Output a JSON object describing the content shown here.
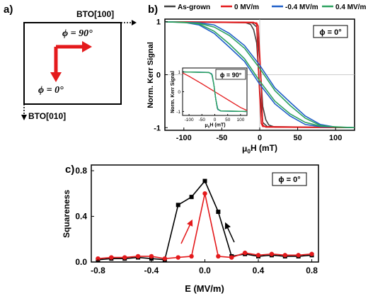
{
  "panel_a": {
    "label": "a)",
    "x_axis_label": "BTO[100]",
    "y_axis_label": "BTO[010]",
    "phi_90_label": "ϕ = 90°",
    "phi_0_label": "ϕ = 0°"
  },
  "panel_b": {
    "label": "b)",
    "phi_box": "ϕ = 0°",
    "inset_phi_box": "ϕ = 90°",
    "colors": {
      "as_grown": "#404040",
      "e0": "#e41a1c",
      "em04": "#1f5fc8",
      "ep04": "#2ca25f"
    }
  },
  "panel_c": {
    "label": "c)",
    "phi_box": "ϕ = 0°",
    "colors": {
      "black": "#000000",
      "red": "#e41a1c"
    }
  },
  "chart_data": [
    {
      "type": "line",
      "panel": "b",
      "xlabel": "μ0H (mT)",
      "ylabel": "Norm. Kerr Signal",
      "xlim": [
        -125,
        125
      ],
      "ylim": [
        -1.05,
        1.05
      ],
      "xticks": [
        -100,
        -50,
        0,
        50,
        100
      ],
      "yticks": [
        -1,
        0,
        1
      ],
      "legend_position": "top",
      "series": [
        {
          "name": "As-grown",
          "color": "#404040",
          "x": [
            -125,
            -10,
            -4,
            0,
            4,
            8,
            12,
            20,
            125
          ],
          "y": [
            1,
            0.98,
            0.9,
            0.3,
            -0.6,
            -0.85,
            -0.95,
            -0.99,
            -1
          ]
        },
        {
          "name": "0 MV/m",
          "color": "#e41a1c",
          "x": [
            -125,
            -8,
            -4,
            -2,
            0,
            2,
            4,
            125
          ],
          "y": [
            1,
            0.99,
            0.95,
            0.2,
            -0.4,
            -0.92,
            -0.98,
            -1
          ]
        },
        {
          "name": "-0.4 MV/m",
          "color": "#1f5fc8",
          "x": [
            -125,
            -80,
            -60,
            -40,
            -20,
            0,
            20,
            40,
            60,
            80,
            100,
            125
          ],
          "y": [
            1,
            0.98,
            0.94,
            0.78,
            0.55,
            0.18,
            -0.25,
            -0.52,
            -0.78,
            -0.94,
            -0.99,
            -1
          ]
        },
        {
          "name": "0.4 MV/m",
          "color": "#2ca25f",
          "x": [
            -125,
            -80,
            -60,
            -40,
            -20,
            0,
            20,
            40,
            60,
            80,
            100,
            125
          ],
          "y": [
            1,
            0.97,
            0.9,
            0.74,
            0.5,
            0.12,
            -0.3,
            -0.58,
            -0.82,
            -0.96,
            -0.99,
            -1
          ]
        }
      ]
    },
    {
      "type": "line",
      "panel": "b-inset",
      "xlabel": "μ0H (mT)",
      "ylabel": "Norm. Kerr Signal",
      "xlim": [
        -125,
        125
      ],
      "ylim": [
        -1.2,
        1.2
      ],
      "xticks": [
        -100,
        -50,
        0,
        50,
        100
      ],
      "yticks": [
        -1,
        0,
        1
      ],
      "series": [
        {
          "name": "0 MV/m",
          "color": "#e41a1c",
          "x": [
            -125,
            -100,
            -50,
            0,
            50,
            100,
            125
          ],
          "y": [
            0.95,
            0.78,
            0.4,
            0.0,
            -0.4,
            -0.8,
            -0.95
          ]
        },
        {
          "name": "-0.4 MV/m",
          "color": "#1f5fc8",
          "x": [
            -125,
            -25,
            -12,
            -4,
            0,
            4,
            12,
            25,
            125
          ],
          "y": [
            1,
            0.98,
            0.9,
            0.4,
            0,
            -0.4,
            -0.9,
            -0.98,
            -1
          ]
        },
        {
          "name": "0.4 MV/m",
          "color": "#2ca25f",
          "x": [
            -125,
            -22,
            -10,
            -3,
            0,
            3,
            10,
            22,
            125
          ],
          "y": [
            1,
            0.97,
            0.85,
            0.3,
            0,
            -0.3,
            -0.85,
            -0.97,
            -1
          ]
        }
      ]
    },
    {
      "type": "line",
      "panel": "c",
      "xlabel": "E (MV/m)",
      "ylabel": "Squareness",
      "xlim": [
        -0.85,
        0.85
      ],
      "ylim": [
        0,
        0.85
      ],
      "xticks": [
        -0.8,
        -0.4,
        0.0,
        0.4,
        0.8
      ],
      "xtick_labels": [
        "-0.8",
        "-0.4",
        "0.0",
        "0.4",
        "0.8"
      ],
      "yticks": [
        0.0,
        0.4,
        0.8
      ],
      "ytick_labels": [
        "0.0",
        "0.4",
        "0.8"
      ],
      "series": [
        {
          "color": "#000000",
          "marker": "square",
          "x": [
            -0.8,
            -0.7,
            -0.6,
            -0.5,
            -0.4,
            -0.3,
            -0.2,
            -0.1,
            0.0,
            0.1,
            0.2,
            0.3,
            0.4,
            0.5,
            0.6,
            0.7,
            0.8
          ],
          "y": [
            0.02,
            0.03,
            0.03,
            0.04,
            0.03,
            0.02,
            0.5,
            0.57,
            0.71,
            0.44,
            0.05,
            0.07,
            0.05,
            0.06,
            0.05,
            0.05,
            0.06
          ]
        },
        {
          "color": "#e41a1c",
          "marker": "circle",
          "x": [
            -0.8,
            -0.7,
            -0.6,
            -0.5,
            -0.4,
            -0.3,
            -0.2,
            -0.1,
            0.0,
            0.1,
            0.2,
            0.3,
            0.4,
            0.5,
            0.6,
            0.7,
            0.8
          ],
          "y": [
            0.03,
            0.04,
            0.04,
            0.05,
            0.05,
            0.03,
            0.04,
            0.05,
            0.6,
            0.05,
            0.04,
            0.08,
            0.06,
            0.07,
            0.06,
            0.06,
            0.07
          ]
        }
      ]
    }
  ]
}
